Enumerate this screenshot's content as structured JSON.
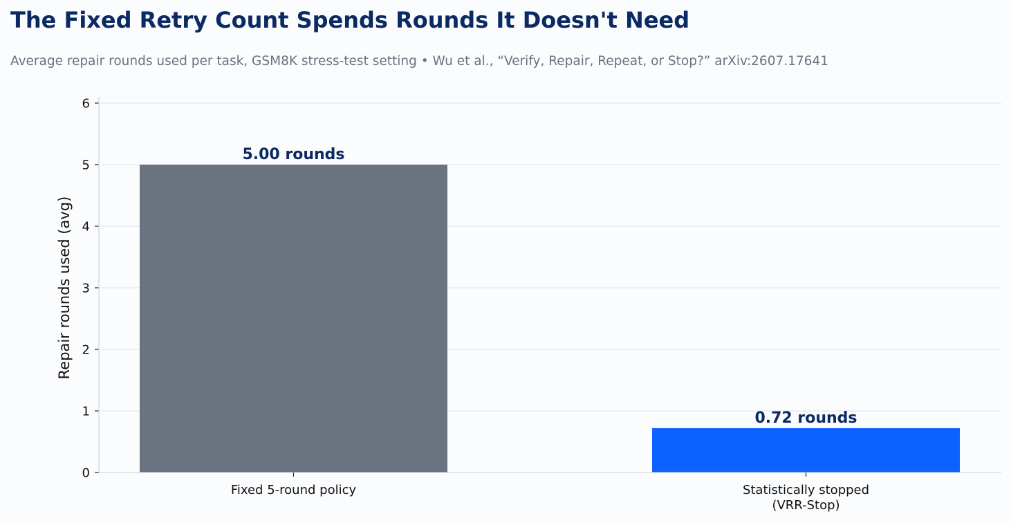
{
  "chart_data": {
    "type": "bar",
    "title": "The Fixed Retry Count Spends Rounds It Doesn't Need",
    "subtitle": "Average repair rounds used per task, GSM8K stress-test setting  •  Wu et al., “Verify, Repair, Repeat, or Stop?” arXiv:2607.17641",
    "xlabel": "",
    "ylabel": "Repair rounds used (avg)",
    "ylim": [
      0,
      6
    ],
    "yticks": [
      "0",
      "1",
      "2",
      "3",
      "4",
      "5",
      "6"
    ],
    "grid": true,
    "categories": [
      [
        "Fixed 5-round policy"
      ],
      [
        "Statistically stopped",
        "(VRR-Stop)"
      ]
    ],
    "values": [
      5.0,
      0.72
    ],
    "data_labels": [
      "5.00 rounds",
      "0.72 rounds"
    ],
    "bar_colors": [
      "#6b7280",
      "#0b62ff"
    ]
  },
  "colors": {
    "title": "#0b2a63",
    "subtitle": "#6b7280",
    "gridline": "#e5e7eb",
    "axis": "#d1d5db"
  }
}
